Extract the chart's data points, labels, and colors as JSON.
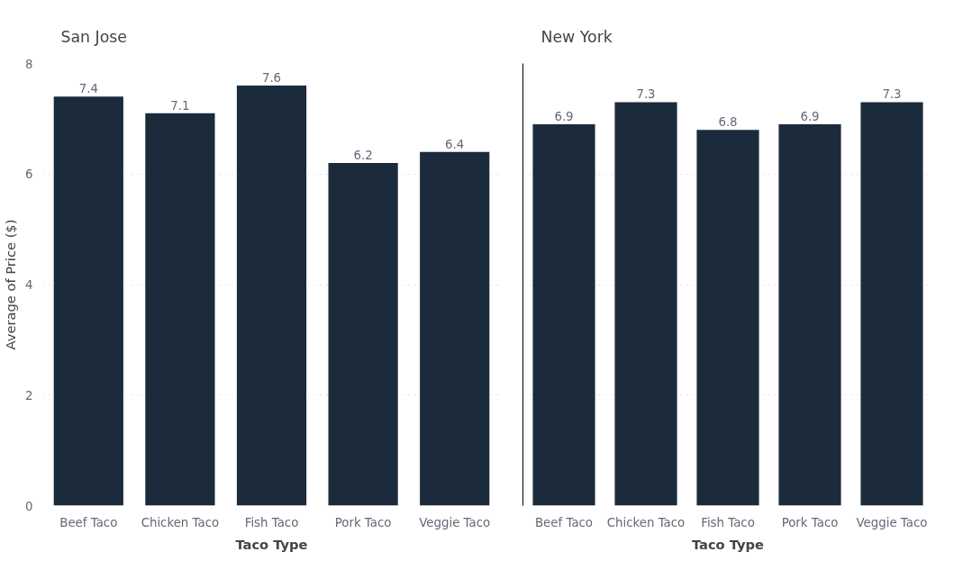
{
  "chart_data": [
    {
      "type": "bar",
      "title": "San Jose",
      "xlabel": "Taco Type",
      "ylabel": "Average of Price ($)",
      "categories": [
        "Beef Taco",
        "Chicken Taco",
        "Fish Taco",
        "Pork Taco",
        "Veggie Taco"
      ],
      "values": [
        7.4,
        7.1,
        7.6,
        6.2,
        6.4
      ],
      "color": "#1c2b3c",
      "ylim": [
        0,
        8
      ],
      "yticks": [
        0,
        2,
        4,
        6,
        8
      ],
      "grid": "y",
      "data_labels": true
    },
    {
      "type": "bar",
      "title": "New York",
      "xlabel": "Taco Type",
      "categories": [
        "Beef Taco",
        "Chicken Taco",
        "Fish Taco",
        "Pork Taco",
        "Veggie Taco"
      ],
      "values": [
        6.9,
        7.3,
        6.8,
        6.9,
        7.3
      ],
      "color": "#1c2b3c",
      "ylim": [
        0,
        8
      ],
      "yticks": [
        0,
        2,
        4,
        6,
        8
      ],
      "grid": "y",
      "data_labels": true,
      "tick_labels": "x"
    }
  ]
}
